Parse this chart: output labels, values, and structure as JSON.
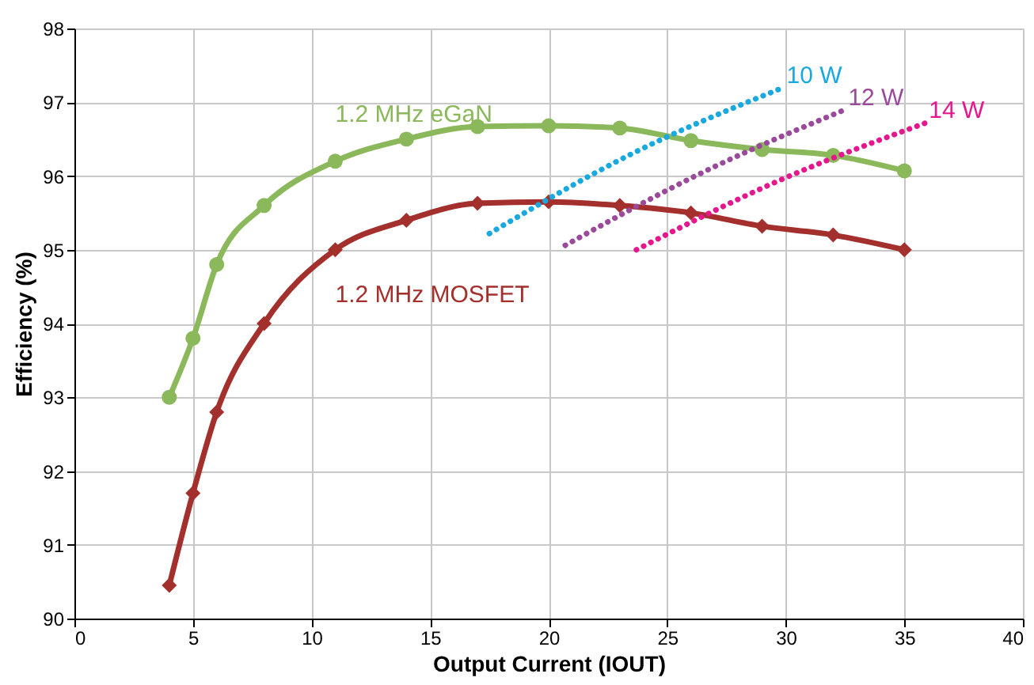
{
  "chart_data": {
    "type": "line",
    "xlabel": "Output Current (IOUT)",
    "ylabel": "Efficiency (%)",
    "xlim": [
      0,
      40
    ],
    "xticks": [
      0,
      5,
      10,
      15,
      20,
      25,
      30,
      35,
      40
    ],
    "ylim": [
      90,
      98
    ],
    "yticks": [
      90,
      91,
      92,
      93,
      94,
      95,
      96,
      97,
      98
    ],
    "grid": true,
    "series": [
      {
        "name": "1.2 MHz eGaN",
        "color": "#8ab85a",
        "marker": "circle",
        "line_style": "solid",
        "x": [
          4,
          5,
          6,
          8,
          11,
          14,
          17,
          20,
          23,
          26,
          29,
          32,
          35
        ],
        "values": [
          93.0,
          93.8,
          94.8,
          95.6,
          96.2,
          96.5,
          96.67,
          96.68,
          96.65,
          96.48,
          96.36,
          96.28,
          96.07
        ]
      },
      {
        "name": "1.2 MHz MOSFET",
        "color": "#a3302c",
        "marker": "diamond",
        "line_style": "solid",
        "x": [
          4,
          5,
          6,
          8,
          11,
          14,
          17,
          20,
          23,
          26,
          29,
          32,
          35
        ],
        "values": [
          90.45,
          91.7,
          92.8,
          94.0,
          95.0,
          95.4,
          95.63,
          95.65,
          95.6,
          95.5,
          95.32,
          95.2,
          95.0
        ]
      },
      {
        "name": "10 W",
        "color": "#1aa8e0",
        "marker": "none",
        "line_style": "dotted",
        "x": [
          17.5,
          23.5,
          29.9
        ],
        "values": [
          95.22,
          96.3,
          97.2
        ]
      },
      {
        "name": "12 W",
        "color": "#9b4a9b",
        "marker": "none",
        "line_style": "dotted",
        "x": [
          20.7,
          26.5,
          32.5
        ],
        "values": [
          95.06,
          96.05,
          96.9
        ]
      },
      {
        "name": "14 W",
        "color": "#e6168c",
        "marker": "none",
        "line_style": "dotted",
        "x": [
          23.7,
          29.8,
          35.9
        ],
        "values": [
          95.0,
          95.95,
          96.72
        ]
      }
    ]
  }
}
